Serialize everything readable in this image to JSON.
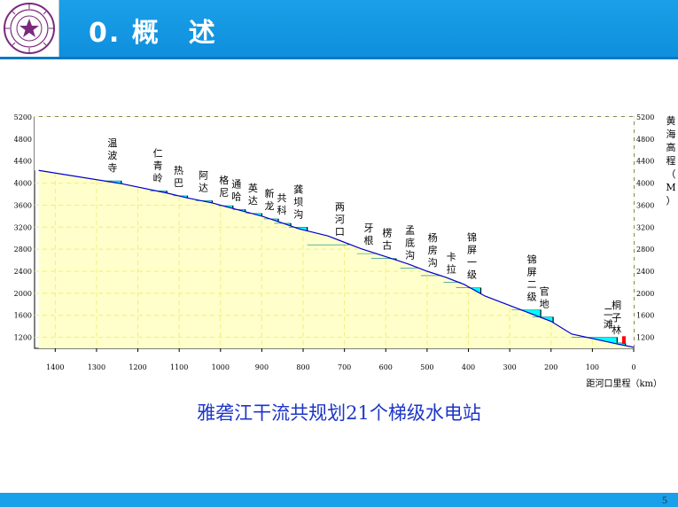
{
  "slide": {
    "title": "0. 概　述",
    "caption": "雅砻江干流共规划21个梯级水电站",
    "page_number": "5"
  },
  "colors": {
    "header": "#1aa0e8",
    "caption": "#1d36c8",
    "terrain": "#ffffcc",
    "grid": "#f0ee7a",
    "reservoir": "#00ffff",
    "river_line": "#0000cc",
    "marker": "#ff0000"
  },
  "logo": {
    "icon": "university-seal-icon"
  },
  "chart_data": {
    "type": "area",
    "x_axis_label": "距河口里程（km）",
    "y_axis_label_right": "黄海高程（M）",
    "xlim": [
      1450,
      0
    ],
    "ylim": [
      1000,
      5200
    ],
    "x_ticks": [
      1400,
      1300,
      1200,
      1100,
      1000,
      900,
      800,
      700,
      600,
      500,
      400,
      300,
      200,
      100,
      0
    ],
    "y_ticks": [
      1200,
      1600,
      2000,
      2400,
      2800,
      3200,
      3600,
      4000,
      4400,
      4800,
      5200
    ],
    "grid": true,
    "profile": [
      {
        "km": 1440,
        "elev": 4230
      },
      {
        "km": 1240,
        "elev": 3990
      },
      {
        "km": 1130,
        "elev": 3820
      },
      {
        "km": 1080,
        "elev": 3730
      },
      {
        "km": 1020,
        "elev": 3640
      },
      {
        "km": 970,
        "elev": 3540
      },
      {
        "km": 900,
        "elev": 3400
      },
      {
        "km": 860,
        "elev": 3300
      },
      {
        "km": 810,
        "elev": 3170
      },
      {
        "km": 740,
        "elev": 3040
      },
      {
        "km": 660,
        "elev": 2810
      },
      {
        "km": 590,
        "elev": 2640
      },
      {
        "km": 545,
        "elev": 2530
      },
      {
        "km": 500,
        "elev": 2400
      },
      {
        "km": 455,
        "elev": 2290
      },
      {
        "km": 410,
        "elev": 2160
      },
      {
        "km": 360,
        "elev": 1950
      },
      {
        "km": 200,
        "elev": 1490
      },
      {
        "km": 150,
        "elev": 1260
      },
      {
        "km": 40,
        "elev": 1080
      },
      {
        "km": 0,
        "elev": 1020
      }
    ],
    "stations": [
      {
        "name": "温波寺",
        "km": 1240,
        "normal_level": 4040,
        "reservoir_length_km": 40
      },
      {
        "name": "仁青岭",
        "km": 1130,
        "normal_level": 3860,
        "reservoir_length_km": 40
      },
      {
        "name": "热巴",
        "km": 1080,
        "normal_level": 3770,
        "reservoir_length_km": 35
      },
      {
        "name": "阿达",
        "km": 1020,
        "normal_level": 3680,
        "reservoir_length_km": 40
      },
      {
        "name": "格尼",
        "km": 970,
        "normal_level": 3590,
        "reservoir_length_km": 35
      },
      {
        "name": "通哈",
        "km": 940,
        "normal_level": 3520,
        "reservoir_length_km": 30
      },
      {
        "name": "英达",
        "km": 900,
        "normal_level": 3450,
        "reservoir_length_km": 40
      },
      {
        "name": "新龙",
        "km": 860,
        "normal_level": 3350,
        "reservoir_length_km": 35
      },
      {
        "name": "共科",
        "km": 830,
        "normal_level": 3270,
        "reservoir_length_km": 40
      },
      {
        "name": "龚坝沟",
        "km": 790,
        "normal_level": 3200,
        "reservoir_length_km": 45
      },
      {
        "name": "两河口",
        "km": 690,
        "normal_level": 2880,
        "reservoir_length_km": 100
      },
      {
        "name": "牙根",
        "km": 620,
        "normal_level": 2720,
        "reservoir_length_km": 50
      },
      {
        "name": "楞古",
        "km": 575,
        "normal_level": 2630,
        "reservoir_length_km": 60
      },
      {
        "name": "孟底沟",
        "km": 520,
        "normal_level": 2460,
        "reservoir_length_km": 45
      },
      {
        "name": "杨房沟",
        "km": 465,
        "normal_level": 2320,
        "reservoir_length_km": 50
      },
      {
        "name": "卡拉",
        "km": 420,
        "normal_level": 2200,
        "reservoir_length_km": 40
      },
      {
        "name": "锦屏一级",
        "km": 370,
        "normal_level": 2100,
        "reservoir_length_km": 60
      },
      {
        "name": "锦屏二级",
        "km": 225,
        "normal_level": 1700,
        "reservoir_length_km": 70
      },
      {
        "name": "官地",
        "km": 195,
        "normal_level": 1570,
        "reservoir_length_km": 50
      },
      {
        "name": "二滩",
        "km": 40,
        "normal_level": 1200,
        "reservoir_length_km": 110
      },
      {
        "name": "桐子林",
        "km": 20,
        "normal_level": 1100,
        "reservoir_length_km": 20
      }
    ]
  }
}
